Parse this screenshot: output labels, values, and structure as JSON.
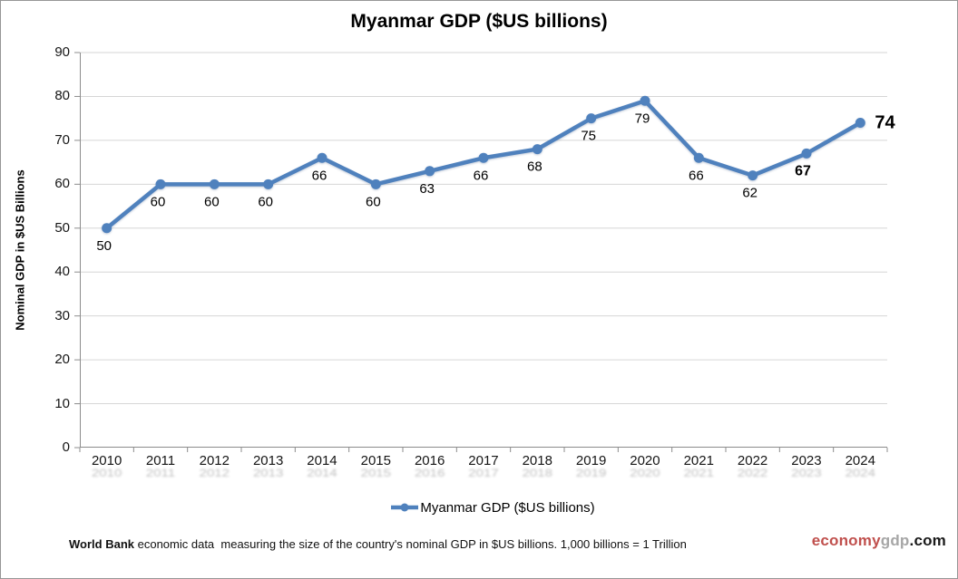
{
  "title": "Myanmar GDP ($US billions)",
  "y_axis": {
    "title": "Nominal GDP in $US Billions"
  },
  "legend": {
    "label": "Myanmar GDP ($US billions)"
  },
  "footer": {
    "bold": "World Bank",
    "text": " economic data  measuring the size of the country's nominal GDP in $US billions. 1,000 billions = 1 Trillion"
  },
  "brand": {
    "part1": "economy",
    "part2": "gdp",
    "part3": ".com",
    "color1": "#c0504d",
    "color2": "#a6a6a6",
    "color3": "#1a1a1a"
  },
  "colors": {
    "accent": "#4f81bd",
    "gridline": "#d6d6d6",
    "axis": "#8c8c8c",
    "label": "#000000"
  },
  "chart_data": {
    "type": "line",
    "title": "Myanmar GDP ($US billions)",
    "categories": [
      "2010",
      "2011",
      "2012",
      "2013",
      "2014",
      "2015",
      "2016",
      "2017",
      "2018",
      "2019",
      "2020",
      "2021",
      "2022",
      "2023",
      "2024"
    ],
    "series": [
      {
        "name": "Myanmar GDP ($US billions)",
        "color": "#4f81bd",
        "values": [
          50,
          60,
          60,
          60,
          66,
          60,
          63,
          66,
          68,
          75,
          79,
          66,
          62,
          67,
          74
        ]
      }
    ],
    "data_labels": [
      "50",
      "60",
      "60",
      "60",
      "66",
      "60",
      "63",
      "66",
      "68",
      "75",
      "79",
      "66",
      "62",
      "67",
      "74"
    ],
    "data_label_emphasis": [
      "normal",
      "normal",
      "normal",
      "normal",
      "normal",
      "normal",
      "normal",
      "normal",
      "normal",
      "normal",
      "normal",
      "normal",
      "normal",
      "bold",
      "large"
    ],
    "xlabel": "",
    "ylabel": "Nominal GDP in $US Billions",
    "ylim": [
      0,
      90
    ],
    "ytick_step": 10,
    "grid": true,
    "legend_position": "bottom"
  }
}
